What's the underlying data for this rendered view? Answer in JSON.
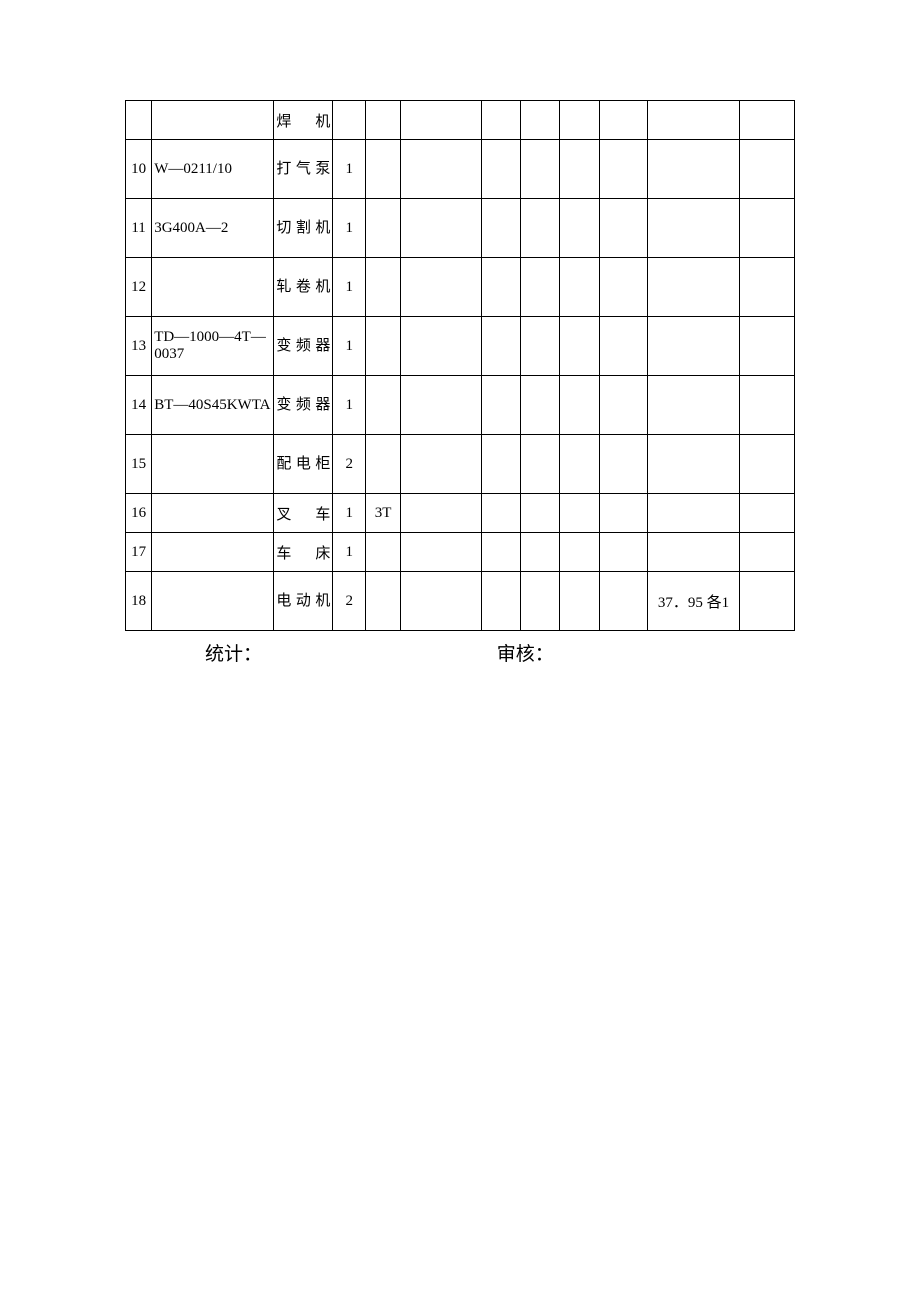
{
  "table": {
    "border_color": "#000000",
    "background_color": "#ffffff",
    "font_family": "SimSun",
    "cell_fontsize": 15,
    "columns": [
      {
        "width": 24,
        "align": "center"
      },
      {
        "width": 112,
        "align": "left"
      },
      {
        "width": 54,
        "align": "justify"
      },
      {
        "width": 30,
        "align": "center"
      },
      {
        "width": 32,
        "align": "center"
      },
      {
        "width": 74,
        "align": "left"
      },
      {
        "width": 36,
        "align": "left"
      },
      {
        "width": 36,
        "align": "left"
      },
      {
        "width": 36,
        "align": "left"
      },
      {
        "width": 44,
        "align": "left"
      },
      {
        "width": 85,
        "align": "center"
      },
      {
        "width": 50,
        "align": "left"
      }
    ],
    "rows": [
      {
        "height": "short",
        "cells": [
          "",
          "",
          "焊机",
          "",
          "",
          "",
          "",
          "",
          "",
          "",
          "",
          ""
        ]
      },
      {
        "height": "tall",
        "cells": [
          "10",
          "W—0211/10",
          "打气泵",
          "1",
          "",
          "",
          "",
          "",
          "",
          "",
          "",
          ""
        ]
      },
      {
        "height": "tall",
        "cells": [
          "11",
          "3G400A—2",
          "切割机",
          "1",
          "",
          "",
          "",
          "",
          "",
          "",
          "",
          ""
        ]
      },
      {
        "height": "tall",
        "cells": [
          "12",
          "",
          "轧卷机",
          "1",
          "",
          "",
          "",
          "",
          "",
          "",
          "",
          ""
        ]
      },
      {
        "height": "tall",
        "cells": [
          "13",
          "TD—1000—4T—0037",
          "变频器",
          "1",
          "",
          "",
          "",
          "",
          "",
          "",
          "",
          ""
        ]
      },
      {
        "height": "tall",
        "cells": [
          "14",
          "BT—40S45KWTA",
          "变频器",
          "1",
          "",
          "",
          "",
          "",
          "",
          "",
          "",
          ""
        ]
      },
      {
        "height": "tall",
        "cells": [
          "15",
          "",
          "配电柜",
          "2",
          "",
          "",
          "",
          "",
          "",
          "",
          "",
          ""
        ]
      },
      {
        "height": "short",
        "cells": [
          "16",
          "",
          "叉车",
          "1",
          "3T",
          "",
          "",
          "",
          "",
          "",
          "",
          ""
        ]
      },
      {
        "height": "short",
        "cells": [
          "17",
          "",
          "车床",
          "1",
          "",
          "",
          "",
          "",
          "",
          "",
          "",
          ""
        ]
      },
      {
        "height": "tall",
        "cells": [
          "18",
          "",
          "电动机",
          "2",
          "",
          "",
          "",
          "",
          "",
          "",
          "37．95 各1",
          ""
        ]
      }
    ]
  },
  "footer": {
    "fontsize": 19,
    "left_label": "统计：",
    "right_label": "审核："
  }
}
